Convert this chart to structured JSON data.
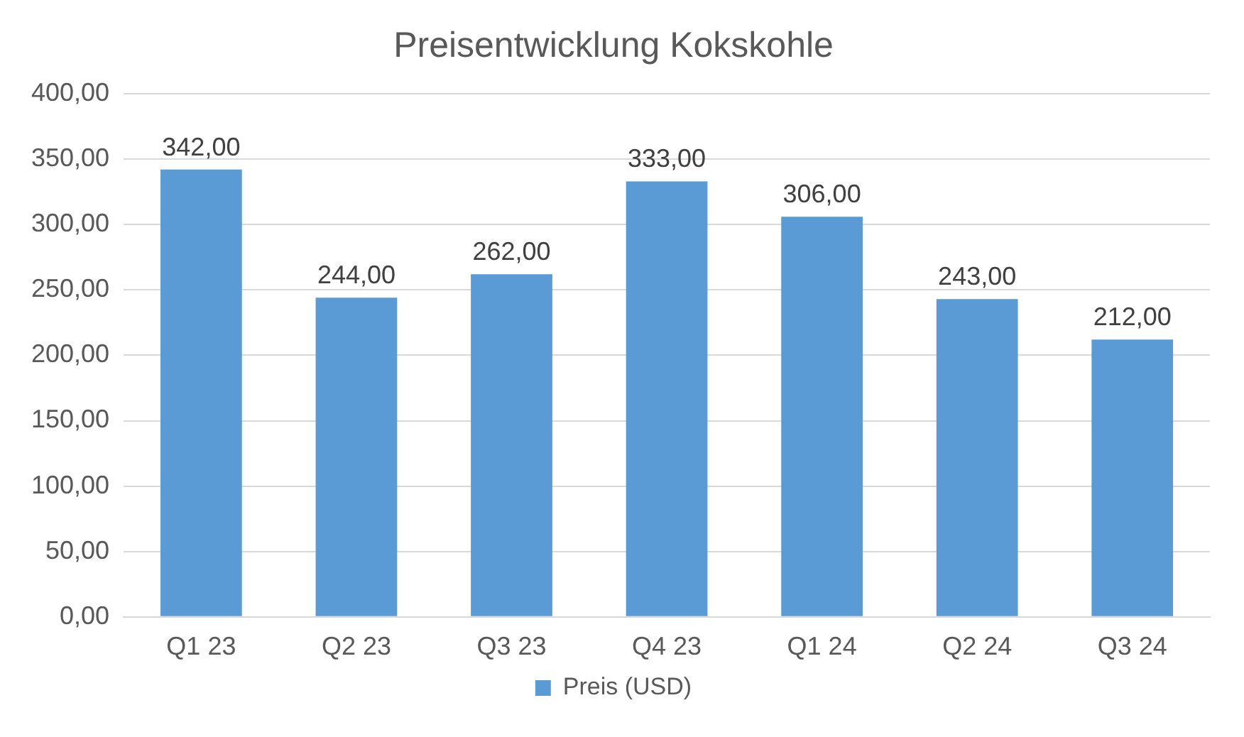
{
  "chart_data": {
    "type": "bar",
    "title": "Preisentwicklung Kokskohle",
    "categories": [
      "Q1 23",
      "Q2 23",
      "Q3 23",
      "Q4 23",
      "Q1 24",
      "Q2 24",
      "Q3 24"
    ],
    "series": [
      {
        "name": "Preis (USD)",
        "color": "#5b9bd5",
        "values": [
          342,
          244,
          262,
          333,
          306,
          243,
          212
        ],
        "value_labels": [
          "342,00",
          "244,00",
          "262,00",
          "333,00",
          "306,00",
          "243,00",
          "212,00"
        ]
      }
    ],
    "ylim": [
      0,
      400
    ],
    "yticks": [
      {
        "value": 0,
        "label": "0,00"
      },
      {
        "value": 50,
        "label": "50,00"
      },
      {
        "value": 100,
        "label": "100,00"
      },
      {
        "value": 150,
        "label": "150,00"
      },
      {
        "value": 200,
        "label": "200,00"
      },
      {
        "value": 250,
        "label": "250,00"
      },
      {
        "value": 300,
        "label": "300,00"
      },
      {
        "value": 350,
        "label": "350,00"
      },
      {
        "value": 400,
        "label": "400,00"
      }
    ],
    "grid": "y",
    "legend": "bottom"
  }
}
